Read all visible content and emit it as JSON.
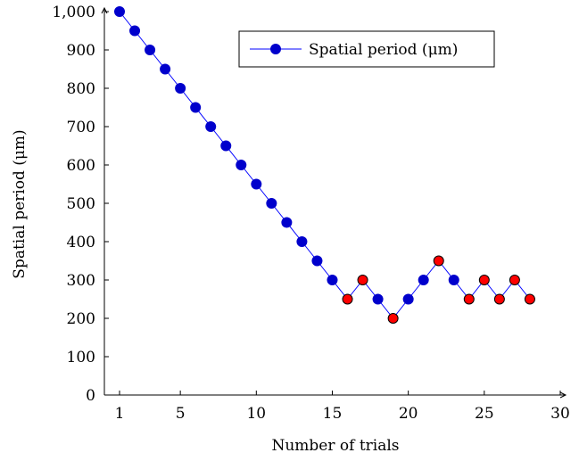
{
  "chart_data": {
    "type": "line",
    "title": "",
    "xlabel": "Number of trials",
    "ylabel": "Spatial period (μm)",
    "xlim": [
      1,
      30
    ],
    "ylim": [
      0,
      1000
    ],
    "x_ticks": [
      1,
      5,
      10,
      15,
      20,
      25,
      30
    ],
    "y_ticks": [
      0,
      100,
      200,
      300,
      400,
      500,
      600,
      700,
      800,
      900,
      1000
    ],
    "x_tick_labels": [
      "1",
      "5",
      "10",
      "15",
      "20",
      "25",
      "30"
    ],
    "y_tick_labels": [
      "0",
      "100",
      "200",
      "300",
      "400",
      "500",
      "600",
      "700",
      "800",
      "900",
      "1,000"
    ],
    "grid": false,
    "legend_position": "top-right",
    "colors": {
      "line": "#0000ff",
      "marker": "#0000cc",
      "highlight": "#ff0000",
      "outline": "#000000"
    },
    "series": [
      {
        "name": "Spatial period (μm)",
        "x": [
          1,
          2,
          3,
          4,
          5,
          6,
          7,
          8,
          9,
          10,
          11,
          12,
          13,
          14,
          15,
          16,
          17,
          18,
          19,
          20,
          21,
          22,
          23,
          24,
          25,
          26,
          27,
          28
        ],
        "y": [
          1000,
          950,
          900,
          850,
          800,
          750,
          700,
          650,
          600,
          550,
          500,
          450,
          400,
          350,
          300,
          250,
          300,
          250,
          200,
          250,
          300,
          350,
          300,
          250,
          300,
          250,
          300,
          250
        ],
        "highlighted": [
          16,
          17,
          19,
          22,
          24,
          25,
          26,
          27,
          28
        ]
      }
    ]
  }
}
